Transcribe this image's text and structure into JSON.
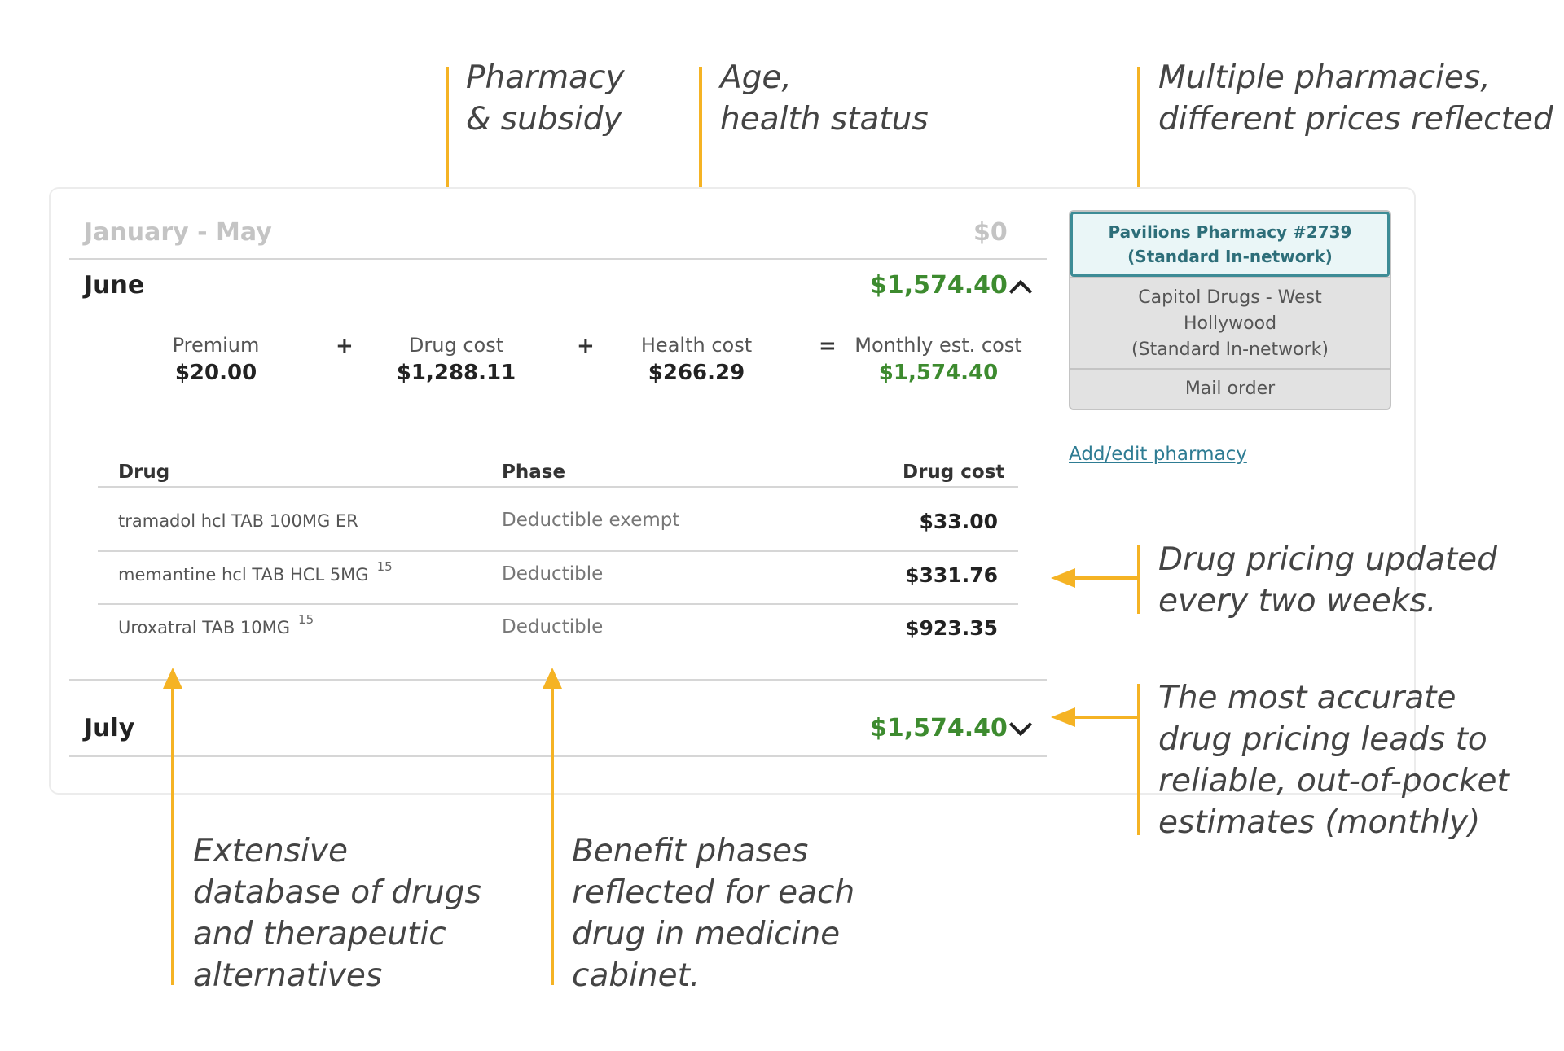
{
  "annotations": {
    "pharmacy_subsidy": [
      "Pharmacy",
      "& subsidy"
    ],
    "age_health": [
      "Age,",
      "health status"
    ],
    "multiple_pharmacies": [
      "Multiple pharmacies,",
      "different prices reflected"
    ],
    "drug_pricing": [
      "Drug pricing updated",
      "every two weeks."
    ],
    "accurate_pricing": [
      "The most accurate",
      "drug pricing leads to",
      "reliable, out-of-pocket",
      "estimates (monthly)"
    ],
    "database": [
      "Extensive",
      "database of drugs",
      "and therapeutic",
      "alternatives"
    ],
    "benefit_phases": [
      "Benefit phases",
      "reflected for each",
      "drug in medicine",
      "cabinet."
    ]
  },
  "months": {
    "jan_may": {
      "label": "January - May",
      "amount": "$0"
    },
    "june": {
      "label": "June",
      "amount": "$1,574.40"
    },
    "july": {
      "label": "July",
      "amount": "$1,574.40"
    }
  },
  "breakdown": {
    "premium": {
      "label": "Premium",
      "value": "$20.00"
    },
    "plus1": "+",
    "drug": {
      "label": "Drug cost",
      "value": "$1,288.11"
    },
    "plus2": "+",
    "health": {
      "label": "Health cost",
      "value": "$266.29"
    },
    "equals": "=",
    "monthly": {
      "label": "Monthly est. cost",
      "value": "$1,574.40"
    }
  },
  "table": {
    "headers": {
      "drug": "Drug",
      "phase": "Phase",
      "cost": "Drug cost"
    },
    "rows": [
      {
        "drug": "tramadol hcl TAB 100MG ER",
        "sup": "",
        "phase": "Deductible exempt",
        "cost": "$33.00"
      },
      {
        "drug": "memantine hcl TAB HCL 5MG",
        "sup": "15",
        "phase": "Deductible",
        "cost": "$331.76"
      },
      {
        "drug": "Uroxatral TAB 10MG",
        "sup": "15",
        "phase": "Deductible",
        "cost": "$923.35"
      }
    ]
  },
  "pharmacy": {
    "selected": [
      "Pavilions Pharmacy #2739",
      "(Standard In-network)"
    ],
    "option1": [
      "Capitol Drugs - West",
      "Hollywood",
      "(Standard In-network)"
    ],
    "option2": "Mail order",
    "link": "Add/edit pharmacy"
  },
  "colors": {
    "accent": "#f5b324",
    "green": "#3d8b2f",
    "teal": "#2d6e79"
  }
}
